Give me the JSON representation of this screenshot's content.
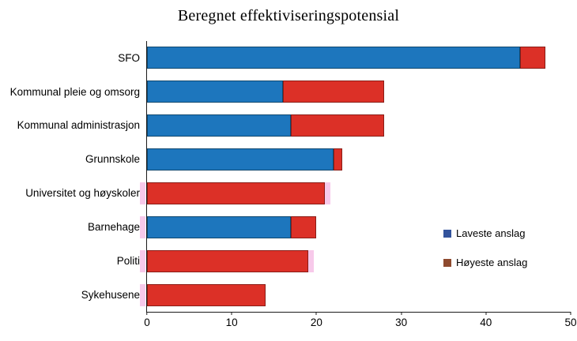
{
  "title": "Beregnet effektiviseringspotensial",
  "chart_data": {
    "type": "bar",
    "orientation": "horizontal",
    "stacked": true,
    "title": "Beregnet effektiviseringspotensial",
    "categories": [
      "SFO",
      "Kommunal pleie og omsorg",
      "Kommunal administrasjon",
      "Grunnskole",
      "Universitet og høyskoler",
      "Barnehage",
      "Politi",
      "Sykehusene"
    ],
    "series": [
      {
        "name": "Laveste anslag",
        "color": "#1d76bd",
        "values": [
          44,
          16,
          17,
          22,
          0,
          17,
          0,
          0
        ]
      },
      {
        "name": "Høyeste anslag",
        "color": "#dc3027",
        "values": [
          47,
          28,
          28,
          23,
          21,
          20,
          19,
          14
        ]
      }
    ],
    "note": "Red segment spans from laveste anslag to høyeste anslag; blue bar is laveste anslag",
    "xlim": [
      0,
      50
    ],
    "xticks": [
      0,
      10,
      20,
      30,
      40,
      50
    ],
    "grid": false,
    "legend": {
      "position": "inside-right",
      "entries": [
        {
          "label": "Laveste anslag",
          "color": "#33539c"
        },
        {
          "label": "Høyeste anslag",
          "color": "#8e4a2e"
        }
      ]
    }
  },
  "artifacts": {
    "pink_color": "#f7c9ea",
    "rows_with_start_mark": [
      4,
      5,
      6,
      7
    ],
    "rows_with_end_mark": [
      4,
      6
    ]
  }
}
